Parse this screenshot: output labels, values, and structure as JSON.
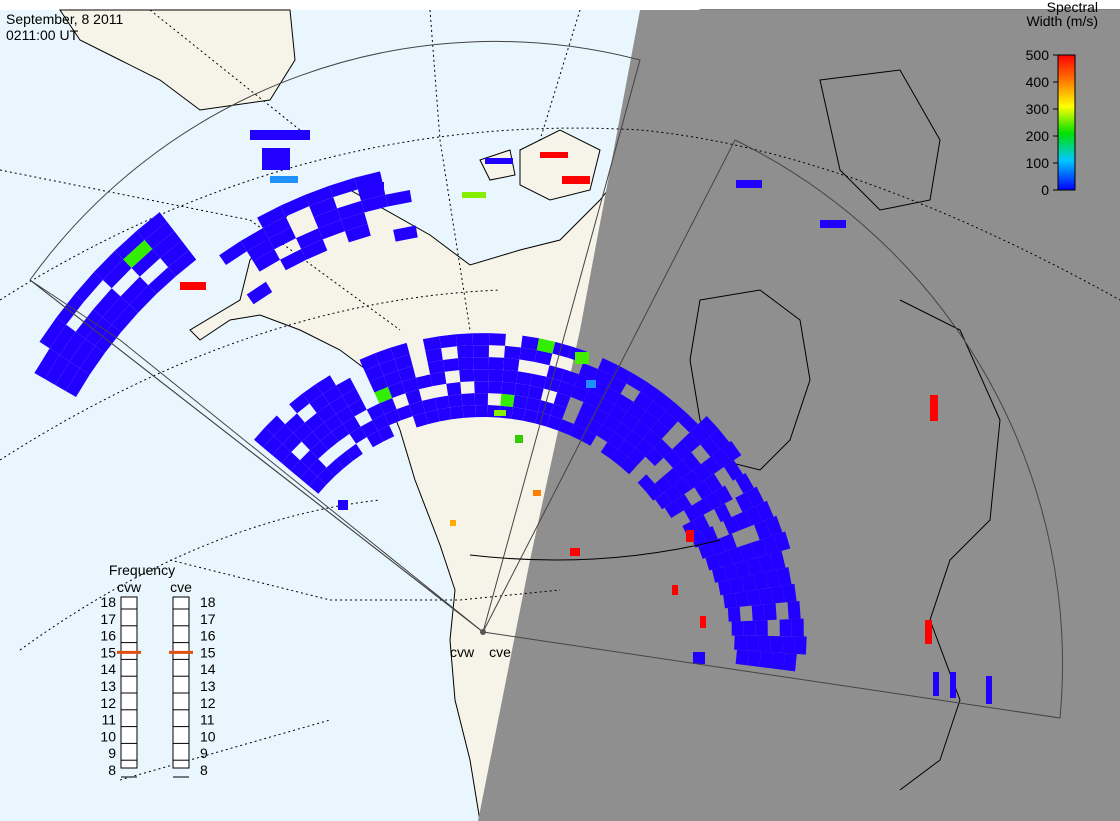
{
  "header": {
    "date": "September, 8 2011",
    "time": "0211:00 UT"
  },
  "colorbar": {
    "title_lines": [
      "Spectral",
      "Width (m/s)"
    ],
    "range": [
      0,
      500
    ],
    "ticks": [
      0,
      100,
      200,
      300,
      400,
      500
    ]
  },
  "frequency": {
    "title": "Frequency",
    "range": [
      8,
      18
    ],
    "ticks": [
      8,
      9,
      10,
      11,
      12,
      13,
      14,
      15,
      16,
      17,
      18
    ],
    "radars": [
      {
        "name": "cvw",
        "value": 15
      },
      {
        "name": "cve",
        "value": 15
      }
    ]
  },
  "map": {
    "sites": [
      "cvw",
      "cve"
    ]
  }
}
